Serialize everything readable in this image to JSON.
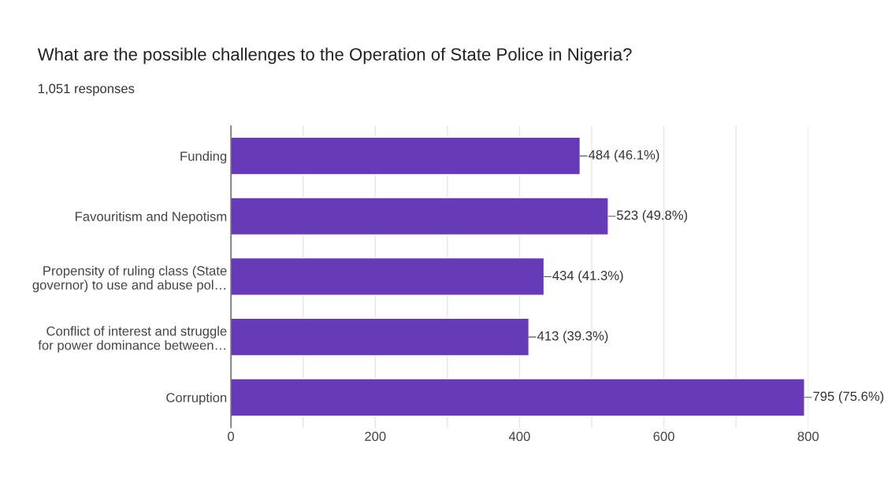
{
  "chart_data": {
    "type": "bar",
    "orientation": "horizontal",
    "title": "What are the possible challenges to the Operation of State Police in Nigeria?",
    "subtitle": "1,051 responses",
    "categories": [
      "Funding",
      "Favouritism and Nepotism",
      "Propensity of ruling class (State\ngovernor) to use and abuse pol…",
      "Conflict of interest and struggle\nfor power dominance between…",
      "Corruption"
    ],
    "values": [
      484,
      523,
      434,
      413,
      795
    ],
    "value_labels": [
      "484 (46.1%)",
      "523 (49.8%)",
      "434 (41.3%)",
      "413 (39.3%)",
      "795 (75.6%)"
    ],
    "color": "#673ab7",
    "xlim": [
      0,
      800
    ],
    "xticks": [
      0,
      {
        "value": 100,
        "label": null
      },
      200,
      {
        "value": 300,
        "label": null
      },
      400,
      {
        "value": 500,
        "label": null
      },
      600,
      {
        "value": 700,
        "label": null
      },
      800
    ],
    "grid": "x"
  }
}
